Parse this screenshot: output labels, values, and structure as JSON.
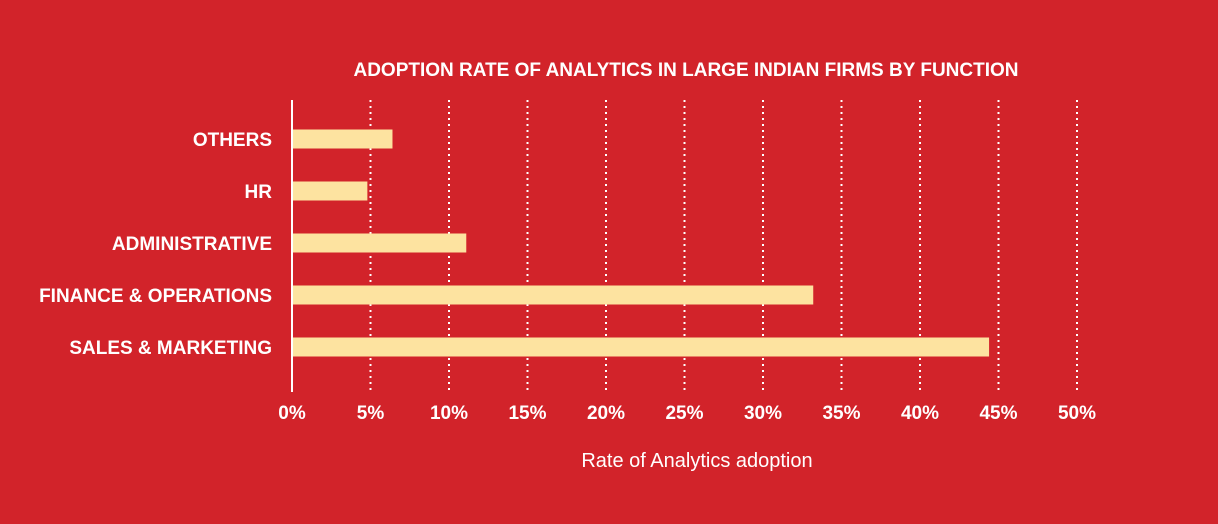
{
  "colors": {
    "background": "#d2232a",
    "bar": "#fde3a0",
    "text": "#ffffff",
    "grid": "#ffffff"
  },
  "chart_data": {
    "type": "bar",
    "orientation": "horizontal",
    "title": "ADOPTION RATE OF ANALYTICS IN LARGE INDIAN FIRMS BY FUNCTION",
    "xlabel": "Rate of Analytics adoption",
    "ylabel": "",
    "categories": [
      "OTHERS",
      "HR",
      "ADMINISTRATIVE",
      "FINANCE & OPERATIONS",
      "SALES & MARKETING"
    ],
    "values": [
      6.4,
      4.8,
      11.1,
      33.2,
      44.4
    ],
    "xlim": [
      0,
      50
    ],
    "xticks": [
      0,
      5,
      10,
      15,
      20,
      25,
      30,
      35,
      40,
      45,
      50
    ],
    "xtick_labels": [
      "0%",
      "5%",
      "10%",
      "15%",
      "20%",
      "25%",
      "30%",
      "35%",
      "40%",
      "45%",
      "50%"
    ],
    "grid": "vertical dotted",
    "legend": "none"
  }
}
